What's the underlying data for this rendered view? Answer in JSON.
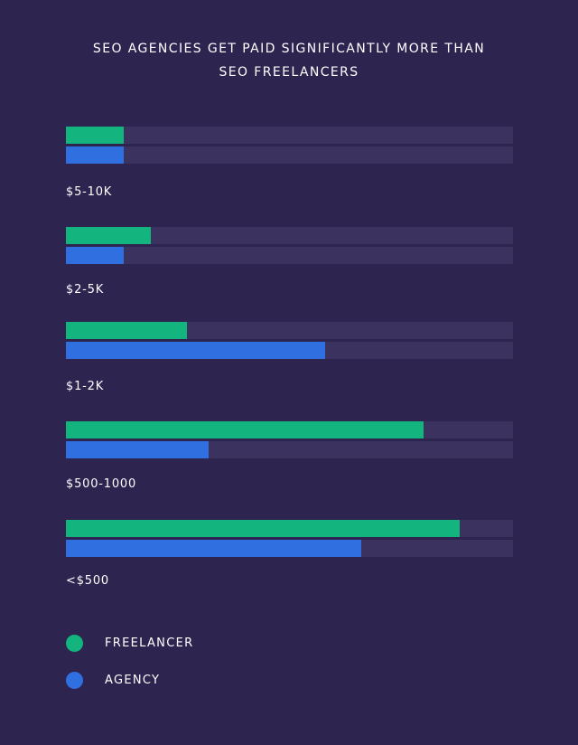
{
  "chart_data": {
    "type": "bar",
    "orientation": "horizontal",
    "title": "SEO AGENCIES GET PAID SIGNIFICANTLY MORE THAN SEO FREELANCERS",
    "title_lines": [
      "SEO AGENCIES GET PAID SIGNIFICANTLY MORE THAN",
      "SEO FREELANCERS"
    ],
    "categories": [
      "$5-10K",
      "$2-5K",
      "$1-2K",
      "$500-1000",
      "<$500"
    ],
    "series": [
      {
        "name": "FREELANCER",
        "color": "#13b47e",
        "values": [
          13,
          19,
          27,
          80,
          88
        ]
      },
      {
        "name": "AGENCY",
        "color": "#2f6fe0",
        "values": [
          13,
          13,
          58,
          32,
          66
        ]
      }
    ],
    "xlim": [
      0,
      100
    ],
    "axis_labels_shown": false,
    "grid": false,
    "legend_position": "bottom-left",
    "track_color": "#3b3260",
    "background": "#2d2450"
  },
  "legend": [
    {
      "label": "FREELANCER",
      "color": "#13b47e"
    },
    {
      "label": "AGENCY",
      "color": "#2f6fe0"
    }
  ]
}
